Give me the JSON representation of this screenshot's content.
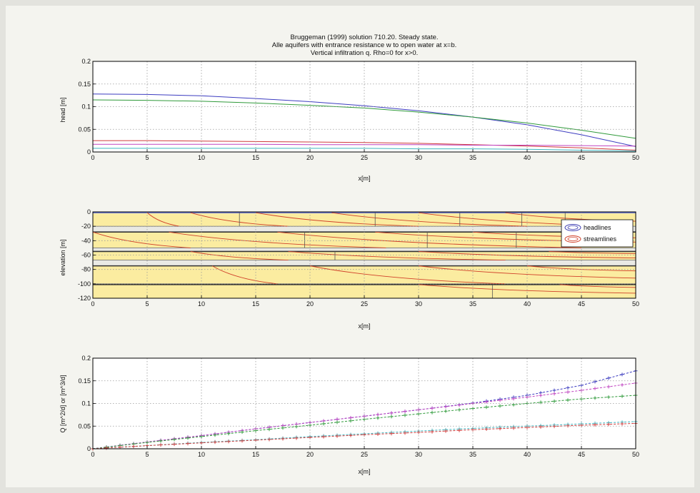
{
  "figure": {
    "title_lines": [
      "Bruggeman (1999) solution 710.20. Steady state.",
      "Alle aquifers with entrance resistance w to open water at x=b.",
      "Vertical infiltration q. Rho=0 for x>0."
    ],
    "colors": {
      "figure_bg": "#f4f4ef",
      "axes_bg": "#ffffff",
      "layer_fill": "#fbeca0",
      "headlines": "#3a3ab0",
      "streamlines": "#d0402a",
      "blue": "#3c3cc0",
      "green": "#2f9a3a",
      "red": "#d03b3b",
      "magenta": "#c043c0",
      "cyan": "#3fb6c0",
      "grid": "#9a9a9a"
    }
  },
  "chart_data": [
    {
      "type": "line",
      "title": "",
      "xlabel": "x[m]",
      "ylabel": "head [m]",
      "xlim": [
        0,
        50
      ],
      "ylim": [
        0,
        0.2
      ],
      "xticks": [
        "0",
        "5",
        "10",
        "15",
        "20",
        "25",
        "30",
        "35",
        "40",
        "45",
        "50"
      ],
      "yticks": [
        "0",
        "0.05",
        "0.1",
        "0.15",
        "0.2"
      ],
      "grid": true,
      "x": [
        0,
        5,
        10,
        15,
        20,
        25,
        30,
        35,
        40,
        45,
        50
      ],
      "series": [
        {
          "color": "blue",
          "values": [
            0.128,
            0.127,
            0.124,
            0.118,
            0.111,
            0.102,
            0.091,
            0.077,
            0.06,
            0.038,
            0.012
          ]
        },
        {
          "color": "green",
          "values": [
            0.115,
            0.114,
            0.112,
            0.108,
            0.103,
            0.097,
            0.088,
            0.077,
            0.064,
            0.048,
            0.03
          ]
        },
        {
          "color": "red",
          "values": [
            0.025,
            0.025,
            0.024,
            0.023,
            0.022,
            0.021,
            0.019,
            0.016,
            0.013,
            0.009,
            0.004
          ]
        },
        {
          "color": "magenta",
          "values": [
            0.017,
            0.017,
            0.017,
            0.017,
            0.016,
            0.016,
            0.016,
            0.015,
            0.015,
            0.014,
            0.013
          ]
        },
        {
          "color": "cyan",
          "values": [
            0.008,
            0.008,
            0.008,
            0.008,
            0.008,
            0.008,
            0.007,
            0.007,
            0.006,
            0.004,
            0.002
          ]
        }
      ]
    },
    {
      "type": "area",
      "title": "",
      "xlabel": "x[m]",
      "ylabel": "elevation [m]",
      "xlim": [
        0,
        50
      ],
      "ylim": [
        -120,
        0
      ],
      "xticks": [
        "0",
        "5",
        "10",
        "15",
        "20",
        "25",
        "30",
        "35",
        "40",
        "45",
        "50"
      ],
      "yticks": [
        "0",
        "-20",
        "-40",
        "-60",
        "-80",
        "-100",
        "-120"
      ],
      "grid": true,
      "legend": {
        "placement": "top-right",
        "entries": [
          "headlines",
          "streamlines"
        ]
      },
      "aquifers": [
        {
          "top": -1,
          "bottom": -20
        },
        {
          "top": -28,
          "bottom": -50
        },
        {
          "top": -55,
          "bottom": -67
        },
        {
          "top": -75,
          "bottom": -100
        },
        {
          "top": -101,
          "bottom": -120
        }
      ],
      "aquitards": [
        {
          "top": -20,
          "bottom": -28
        },
        {
          "top": -50,
          "bottom": -55
        },
        {
          "top": -67,
          "bottom": -75
        }
      ],
      "headlines": [
        {
          "x": 13.5,
          "layer": 0
        },
        {
          "x": 26,
          "layer": 0
        },
        {
          "x": 33.8,
          "layer": 0
        },
        {
          "x": 39.5,
          "layer": 0
        },
        {
          "x": 43.5,
          "layer": 0
        },
        {
          "x": 19.5,
          "layer": 1
        },
        {
          "x": 30.8,
          "layer": 1
        },
        {
          "x": 39,
          "layer": 1
        },
        {
          "x": 22.3,
          "layer": 2
        },
        {
          "x": 36.8,
          "layer": 4
        }
      ],
      "streamlines": [
        {
          "x0": 5,
          "y0": -1,
          "x1": 8,
          "y1": -20
        },
        {
          "x0": 9,
          "y0": -1,
          "x1": 18,
          "y1": -20
        },
        {
          "x0": 15,
          "y0": -1,
          "x1": 30,
          "y1": -20
        },
        {
          "x0": 22,
          "y0": -1,
          "x1": 40,
          "y1": -20
        },
        {
          "x0": 30,
          "y0": -1,
          "x1": 49,
          "y1": -20
        },
        {
          "x0": 38,
          "y0": -1,
          "x1": 50,
          "y1": -13
        },
        {
          "x0": 0,
          "y0": -28,
          "x1": 9,
          "y1": -50
        },
        {
          "x0": 7,
          "y0": -28,
          "x1": 27,
          "y1": -50
        },
        {
          "x0": 17,
          "y0": -28,
          "x1": 45,
          "y1": -50
        },
        {
          "x0": 26,
          "y0": -28,
          "x1": 50,
          "y1": -42
        },
        {
          "x0": 35,
          "y0": -28,
          "x1": 50,
          "y1": -36
        },
        {
          "x0": 9,
          "y0": -55,
          "x1": 18,
          "y1": -67
        },
        {
          "x0": 18,
          "y0": -55,
          "x1": 38,
          "y1": -67
        },
        {
          "x0": 30,
          "y0": -55,
          "x1": 50,
          "y1": -64
        },
        {
          "x0": 42,
          "y0": -55,
          "x1": 50,
          "y1": -58
        },
        {
          "x0": 11,
          "y0": -75,
          "x1": 17,
          "y1": -100
        },
        {
          "x0": 20,
          "y0": -75,
          "x1": 38,
          "y1": -100
        },
        {
          "x0": 30,
          "y0": -75,
          "x1": 50,
          "y1": -92
        },
        {
          "x0": 40,
          "y0": -75,
          "x1": 50,
          "y1": -82
        },
        {
          "x0": 30,
          "y0": -101,
          "x1": 50,
          "y1": -113
        },
        {
          "x0": 43,
          "y0": -101,
          "x1": 50,
          "y1": -105
        }
      ]
    },
    {
      "type": "line",
      "title": "",
      "xlabel": "x[m]",
      "ylabel": "Q [m^2/d] or [m^3/d]",
      "xlim": [
        0,
        50
      ],
      "ylim": [
        0,
        0.2
      ],
      "xticks": [
        "0",
        "5",
        "10",
        "15",
        "20",
        "25",
        "30",
        "35",
        "40",
        "45",
        "50"
      ],
      "yticks": [
        "0",
        "0.05",
        "0.1",
        "0.15",
        "0.2"
      ],
      "grid": true,
      "x": [
        0,
        5,
        10,
        15,
        20,
        25,
        30,
        35,
        40,
        45,
        50
      ],
      "series": [
        {
          "color": "blue",
          "marker": "+",
          "values": [
            0,
            0.015,
            0.029,
            0.044,
            0.058,
            0.072,
            0.086,
            0.101,
            0.118,
            0.14,
            0.172
          ]
        },
        {
          "color": "magenta",
          "marker": "+",
          "values": [
            0,
            0.015,
            0.029,
            0.044,
            0.058,
            0.072,
            0.086,
            0.1,
            0.114,
            0.129,
            0.145
          ]
        },
        {
          "color": "green",
          "marker": "+",
          "values": [
            0,
            0.014,
            0.027,
            0.04,
            0.052,
            0.065,
            0.077,
            0.089,
            0.1,
            0.11,
            0.118
          ]
        },
        {
          "color": "cyan",
          "marker": "+",
          "values": [
            0,
            0.007,
            0.014,
            0.02,
            0.027,
            0.033,
            0.039,
            0.045,
            0.05,
            0.055,
            0.06
          ]
        },
        {
          "color": "red",
          "marker": "+",
          "values": [
            0,
            0.007,
            0.013,
            0.019,
            0.025,
            0.031,
            0.036,
            0.042,
            0.047,
            0.052,
            0.056
          ]
        }
      ]
    }
  ]
}
